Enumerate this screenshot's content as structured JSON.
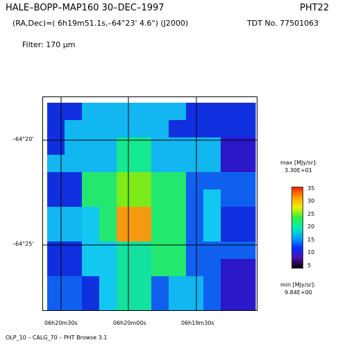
{
  "header": {
    "title_left": "HALE–BOPP–MAP160   30–DEC–1997",
    "title_right": "PHT22",
    "coords": "(RA,Dec)=( 6h19m51.1s,–64°23' 4.6\") (J2000)",
    "tdt": "TDT No. 77501063",
    "filter": "Filter: 170 μm"
  },
  "map": {
    "dec_labels": [
      "–64°20'",
      "–64°25'"
    ],
    "ra_labels": [
      "06h20m30s",
      "06h20m00s",
      "06h19m30s"
    ],
    "grid_layout": [
      "x0 y0 w1 h1 c"
    ],
    "cells": [
      [
        "#1030e0",
        "#1030e0",
        "#12b6f0",
        "#12b6f0",
        "#12b6f0",
        "#12b6f0",
        "#12b6f0",
        "#12b6f0",
        "#1030e0",
        "#1030e0",
        "#1030e0",
        "#1030e0"
      ],
      [
        "#1030e0",
        "#12b6f0",
        "#12b6f0",
        "#12b6f0",
        "#12b6f0",
        "#12b6f0",
        "#12b6f0",
        "#1030e0",
        "#1030e0",
        "#1030e0",
        "#1030e0",
        "#1030e0"
      ],
      [
        "#1030e0",
        "#12b6f0",
        "#12b6f0",
        "#12b6f0",
        "#14e890",
        "#14e890",
        "#12b6f0",
        "#12b6f0",
        "#12b6f0",
        "#12b6f0",
        "#2b18c8",
        "#2b18c8"
      ],
      [
        "#12b6f0",
        "#12b6f0",
        "#12b6f0",
        "#12b6f0",
        "#14e890",
        "#14e890",
        "#12b6f0",
        "#12b6f0",
        "#12b6f0",
        "#12b6f0",
        "#2b18c8",
        "#2b18c8"
      ],
      [
        "#1030e0",
        "#1030e0",
        "#22e870",
        "#22e870",
        "#7dea1a",
        "#7dea1a",
        "#22e870",
        "#22e870",
        "#1060f0",
        "#1060f0",
        "#1060f0",
        "#1060f0"
      ],
      [
        "#1030e0",
        "#1030e0",
        "#22e870",
        "#22e870",
        "#7dea1a",
        "#7dea1a",
        "#22e870",
        "#22e870",
        "#1060f0",
        "#12c8f0",
        "#1060f0",
        "#1060f0"
      ],
      [
        "#12b6f0",
        "#12b6f0",
        "#12c8f0",
        "#22e870",
        "#f59a10",
        "#f59a10",
        "#22e870",
        "#22e870",
        "#1060f0",
        "#12c8f0",
        "#1030e0",
        "#1030e0"
      ],
      [
        "#12b6f0",
        "#12b6f0",
        "#12c8f0",
        "#22e870",
        "#f59a10",
        "#f59a10",
        "#22e870",
        "#22e870",
        "#1060f0",
        "#12c8f0",
        "#1030e0",
        "#1030e0"
      ],
      [
        "#1030e0",
        "#1030e0",
        "#12c8f0",
        "#12c8f0",
        "#14e0a0",
        "#14e0a0",
        "#22e870",
        "#22e870",
        "#1060f0",
        "#1060f0",
        "#1060f0",
        "#1060f0"
      ],
      [
        "#1030e0",
        "#1030e0",
        "#12c8f0",
        "#12c8f0",
        "#14e0a0",
        "#14e0a0",
        "#22e870",
        "#22e870",
        "#1060f0",
        "#1060f0",
        "#2b18c8",
        "#2b18c8"
      ],
      [
        "#1060f0",
        "#1060f0",
        "#1030e0",
        "#12c8f0",
        "#14e0a0",
        "#14e0a0",
        "#1060f0",
        "#12b6f0",
        "#12b6f0",
        "#1060f0",
        "#2b18c8",
        "#2b18c8"
      ],
      [
        "#1060f0",
        "#1060f0",
        "#1030e0",
        "#12c8f0",
        "#14e0a0",
        "#14e0a0",
        "#1060f0",
        "#12b6f0",
        "#12b6f0",
        "#1060f0",
        "#2b18c8",
        "#2b18c8"
      ]
    ]
  },
  "colorbar": {
    "max_label": "max [MJy/sr]:",
    "max_value": "3.30E+01",
    "min_label": "min [MJy/sr]:",
    "min_value": "9.84E+00",
    "ticks": [
      "35",
      "30",
      "25",
      "20",
      "15",
      "10",
      "5"
    ],
    "gradient": [
      "#ff2000",
      "#ffa000",
      "#f0f000",
      "#30f040",
      "#00f0b0",
      "#00a8ff",
      "#0030ff",
      "#5010b0",
      "#000000"
    ]
  },
  "footer": {
    "text": "OLP_10   – CALG_70  – PHT Browse 3.1"
  }
}
